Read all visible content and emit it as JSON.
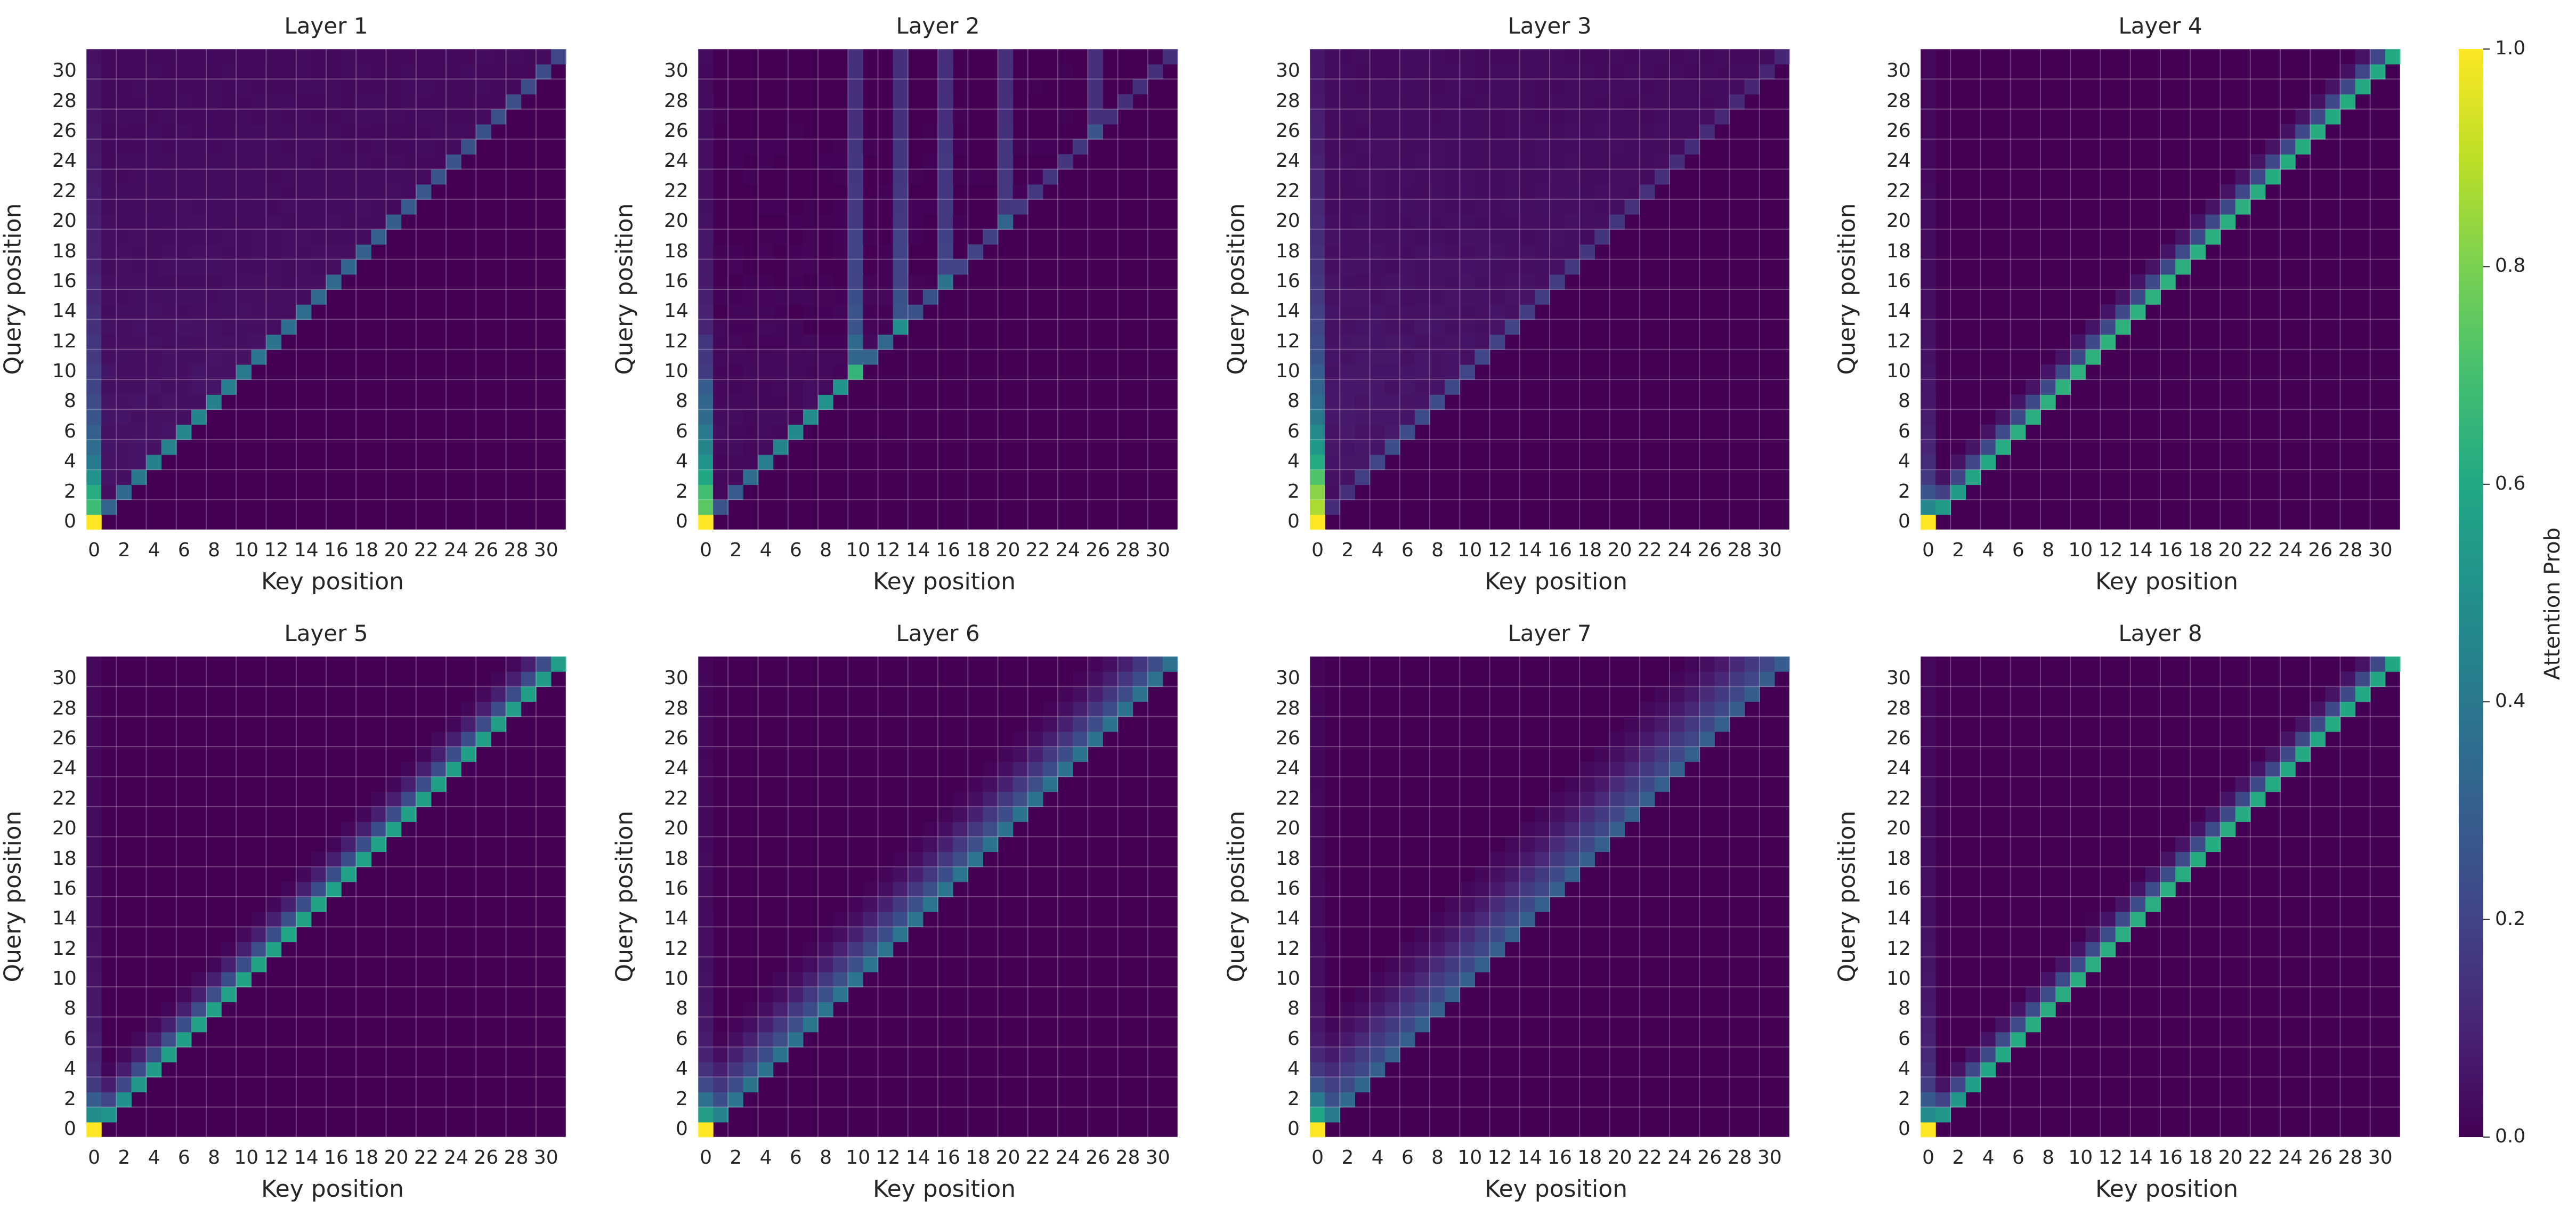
{
  "chart_data": {
    "type": "heatmap",
    "colormap": "viridis",
    "xlabel": "Key position",
    "ylabel": "Query position",
    "size": 32,
    "grid": true,
    "x_ticks": [
      "0",
      "2",
      "4",
      "6",
      "8",
      "10",
      "12",
      "14",
      "16",
      "18",
      "20",
      "22",
      "24",
      "26",
      "28",
      "30"
    ],
    "y_ticks": [
      "0",
      "2",
      "4",
      "6",
      "8",
      "10",
      "12",
      "14",
      "16",
      "18",
      "20",
      "22",
      "24",
      "26",
      "28",
      "30"
    ],
    "colorbar": {
      "label": "Attention Prob",
      "range": [
        0.0,
        1.0
      ],
      "ticks": [
        "0.0",
        "0.2",
        "0.4",
        "0.6",
        "0.8",
        "1.0"
      ]
    },
    "panels": [
      {
        "title": "Layer 1",
        "pattern": "uniform_causal",
        "diag_strength": 0.22,
        "first_key": 0.5,
        "spread": 0.0
      },
      {
        "title": "Layer 2",
        "pattern": "vertical_stripes",
        "stripes": [
          10,
          13,
          16,
          20,
          26
        ],
        "diag_strength": 0.2,
        "first_key": 0.6,
        "spread": 0.0
      },
      {
        "title": "Layer 3",
        "pattern": "uniform_causal",
        "diag_strength": 0.08,
        "first_key": 0.7,
        "spread": 0.0
      },
      {
        "title": "Layer 4",
        "pattern": "diagonal_sharp",
        "diag_strength": 0.75,
        "first_key": 0.85,
        "spread": 1.0
      },
      {
        "title": "Layer 5",
        "pattern": "diagonal_sharp",
        "diag_strength": 0.72,
        "first_key": 0.9,
        "spread": 1.2
      },
      {
        "title": "Layer 6",
        "pattern": "diagonal_broad",
        "diag_strength": 0.45,
        "first_key": 0.95,
        "spread": 2.0
      },
      {
        "title": "Layer 7",
        "pattern": "diagonal_broad",
        "diag_strength": 0.32,
        "first_key": 0.95,
        "spread": 2.6
      },
      {
        "title": "Layer 8",
        "pattern": "diagonal_sharp",
        "diag_strength": 0.68,
        "first_key": 0.9,
        "spread": 1.0
      }
    ]
  }
}
